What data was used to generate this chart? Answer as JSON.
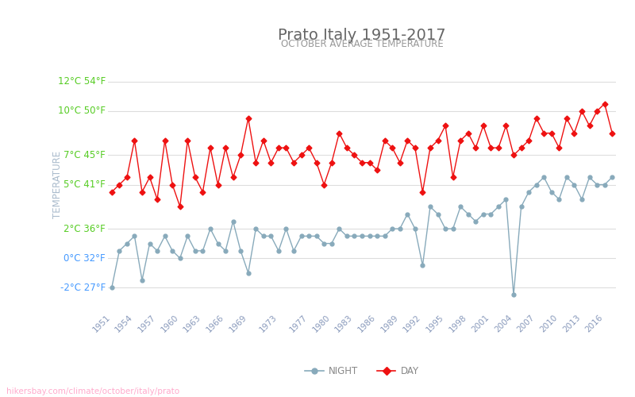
{
  "title": "Prato Italy 1951-2017",
  "subtitle": "OCTOBER AVERAGE TEMPERATURE",
  "ylabel": "TEMPERATURE",
  "title_color": "#666666",
  "subtitle_color": "#999999",
  "bg_color": "#ffffff",
  "grid_color": "#dddddd",
  "night_color": "#88aabb",
  "day_color": "#ee1111",
  "years": [
    1951,
    1952,
    1953,
    1954,
    1955,
    1956,
    1957,
    1958,
    1959,
    1960,
    1961,
    1962,
    1963,
    1964,
    1965,
    1966,
    1967,
    1968,
    1969,
    1970,
    1971,
    1972,
    1973,
    1974,
    1975,
    1976,
    1977,
    1978,
    1979,
    1980,
    1981,
    1982,
    1983,
    1984,
    1985,
    1986,
    1987,
    1988,
    1989,
    1990,
    1991,
    1992,
    1993,
    1994,
    1995,
    1996,
    1997,
    1998,
    1999,
    2000,
    2001,
    2002,
    2003,
    2004,
    2005,
    2006,
    2007,
    2008,
    2009,
    2010,
    2011,
    2012,
    2013,
    2014,
    2015,
    2016,
    2017
  ],
  "night_temps": [
    -2.0,
    0.5,
    1.0,
    1.5,
    -1.5,
    1.0,
    0.5,
    1.5,
    0.5,
    0.0,
    1.5,
    0.5,
    0.5,
    2.0,
    1.0,
    0.5,
    2.5,
    0.5,
    -1.0,
    2.0,
    1.5,
    1.5,
    0.5,
    2.0,
    0.5,
    1.5,
    1.5,
    1.5,
    1.0,
    1.0,
    2.0,
    1.5,
    1.5,
    1.5,
    1.5,
    1.5,
    1.5,
    2.0,
    2.0,
    3.0,
    2.0,
    -0.5,
    3.5,
    3.0,
    2.0,
    2.0,
    3.5,
    3.0,
    2.5,
    3.0,
    3.0,
    3.5,
    4.0,
    -2.5,
    3.5,
    4.5,
    5.0,
    5.5,
    4.5,
    4.0,
    5.5,
    5.0,
    4.0,
    5.5,
    5.0,
    5.0,
    5.5
  ],
  "day_temps": [
    4.5,
    5.0,
    5.5,
    8.0,
    4.5,
    5.5,
    4.0,
    8.0,
    5.0,
    3.5,
    8.0,
    5.5,
    4.5,
    7.5,
    5.0,
    7.5,
    5.5,
    7.0,
    9.5,
    6.5,
    8.0,
    6.5,
    7.5,
    7.5,
    6.5,
    7.0,
    7.5,
    6.5,
    5.0,
    6.5,
    8.5,
    7.5,
    7.0,
    6.5,
    6.5,
    6.0,
    8.0,
    7.5,
    6.5,
    8.0,
    7.5,
    4.5,
    7.5,
    8.0,
    9.0,
    5.5,
    8.0,
    8.5,
    7.5,
    9.0,
    7.5,
    7.5,
    9.0,
    7.0,
    7.5,
    8.0,
    9.5,
    8.5,
    8.5,
    7.5,
    9.5,
    8.5,
    10.0,
    9.0,
    10.0,
    10.5,
    8.5
  ],
  "yticks_c": [
    -2,
    0,
    2,
    5,
    7,
    10,
    12
  ],
  "yticks_f": [
    27,
    32,
    36,
    41,
    45,
    50,
    54
  ],
  "ytick_colors_green": [
    12,
    10,
    7,
    5,
    2
  ],
  "ytick_colors_blue": [
    0,
    -2
  ],
  "xtick_years": [
    1951,
    1954,
    1957,
    1960,
    1963,
    1966,
    1969,
    1973,
    1977,
    1980,
    1983,
    1986,
    1989,
    1992,
    1995,
    1998,
    2001,
    2004,
    2007,
    2010,
    2013,
    2016
  ],
  "watermark": "hikersbay.com/climate/october/italy/prato",
  "ylim": [
    -3.5,
    13.5
  ],
  "xlim": [
    1950.5,
    2017.5
  ]
}
